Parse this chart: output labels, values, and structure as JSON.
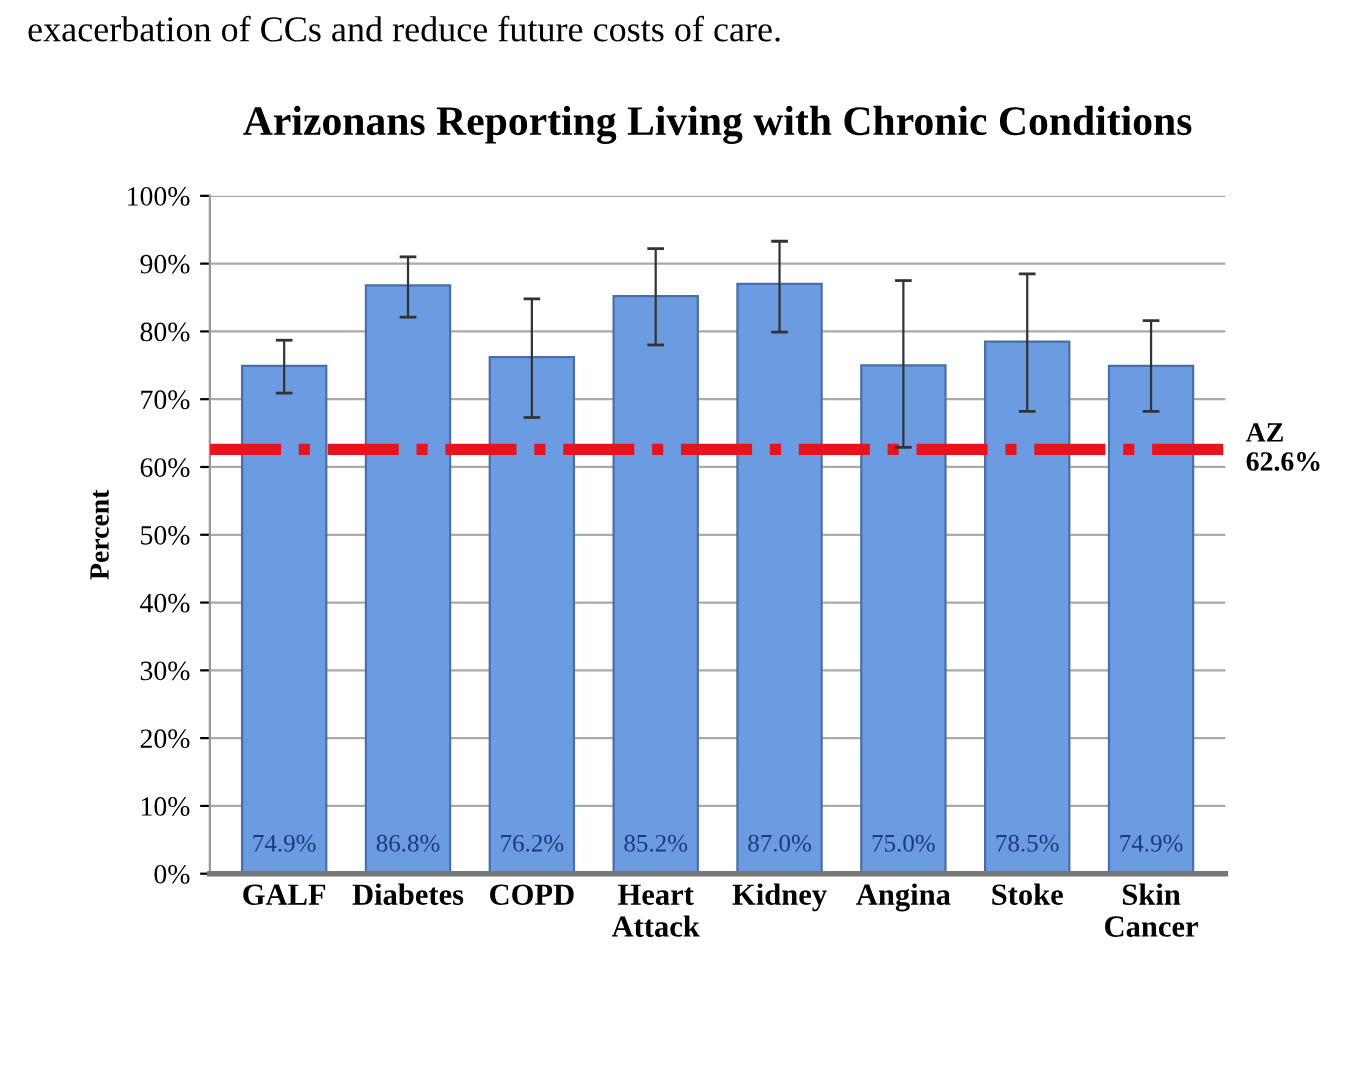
{
  "chart_data": {
    "type": "bar",
    "title": "Arizonans Reporting Living with Chronic Conditions",
    "ylabel": "Percent",
    "categories": [
      "GALF",
      "Diabetes",
      "COPD",
      "Heart\nAttack",
      "Kidney",
      "Angina",
      "Stoke",
      "Skin\nCancer"
    ],
    "values": [
      74.9,
      86.8,
      76.2,
      85.2,
      87.0,
      75.0,
      78.5,
      74.9
    ],
    "value_labels": [
      "74.9%",
      "86.8%",
      "76.2%",
      "85.2%",
      "87.0%",
      "75.0%",
      "78.5%",
      "74.9%"
    ],
    "errors": [
      [
        70.9,
        78.7
      ],
      [
        82.1,
        91.0
      ],
      [
        67.3,
        84.8
      ],
      [
        78.0,
        92.2
      ],
      [
        79.9,
        93.3
      ],
      [
        62.9,
        87.5
      ],
      [
        68.2,
        88.5
      ],
      [
        68.2,
        81.6
      ]
    ],
    "color": "#6b9be0",
    "ylim": [
      0,
      100
    ],
    "yticks": [
      {
        "value": 0,
        "label": "0%"
      },
      {
        "value": 10,
        "label": "10%"
      },
      {
        "value": 20,
        "label": "20%"
      },
      {
        "value": 30,
        "label": "30%"
      },
      {
        "value": 40,
        "label": "40%"
      },
      {
        "value": 50,
        "label": "50%"
      },
      {
        "value": 60,
        "label": "60%"
      },
      {
        "value": 70,
        "label": "70%"
      },
      {
        "value": 80,
        "label": "80%"
      },
      {
        "value": 90,
        "label": "90%"
      },
      {
        "value": 100,
        "label": "100%"
      }
    ],
    "grid": "y",
    "ref_lines": [
      {
        "axis": "y",
        "value": 62.6,
        "label": "AZ\n62.6%",
        "color": "#e8141c",
        "line_style": "dashdot"
      }
    ],
    "annotations": [
      "exacerbation of CCs and reduce future costs of care."
    ]
  }
}
